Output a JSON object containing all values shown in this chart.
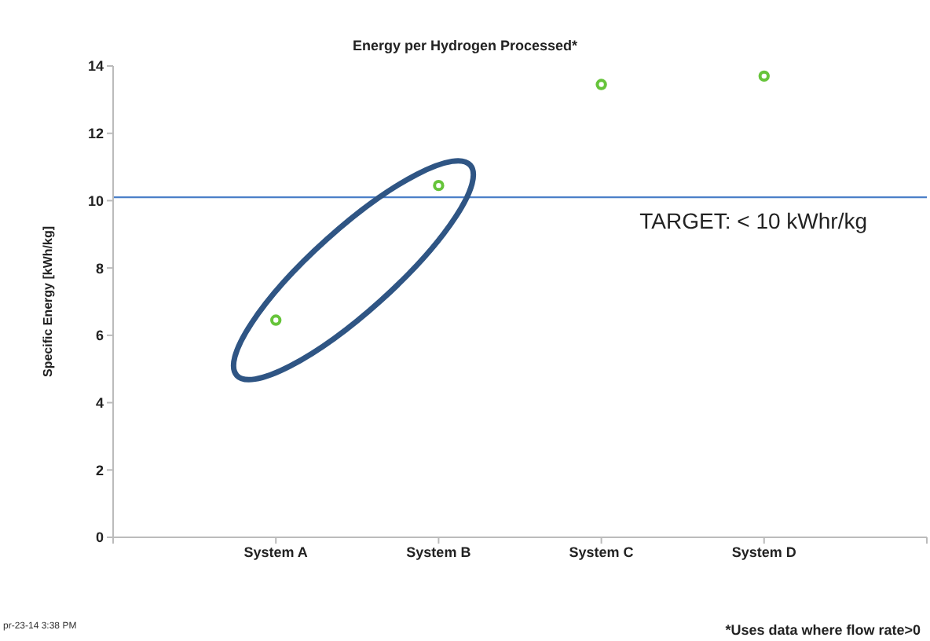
{
  "chart_data": {
    "type": "scatter",
    "title": "Energy per Hydrogen Processed*",
    "ylabel": "Specific Energy [kWh/kg]",
    "categories": [
      null,
      "System A",
      "System B",
      "System C",
      "System D",
      null
    ],
    "series": [
      {
        "color": "#66c43a",
        "values": [
          null,
          6.45,
          10.45,
          13.45,
          13.7,
          null
        ]
      }
    ],
    "ylim": [
      0,
      14
    ],
    "yticks": [
      0,
      2,
      4,
      6,
      8,
      10,
      12,
      14
    ],
    "marker": "circle",
    "grid": false,
    "legend": false,
    "ref_lines": [
      {
        "axis": "y",
        "value": 10.1,
        "label": "TARGET: < 10 kWhr/kg",
        "color": "#4a7fc8"
      }
    ],
    "annotations": [
      "pr-23-14  3:38 PM",
      "*Uses data where flow rate>0"
    ]
  }
}
